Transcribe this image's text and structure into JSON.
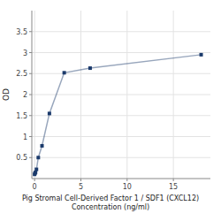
{
  "chart_data": {
    "type": "line",
    "x": [
      0,
      0.05,
      0.1,
      0.2,
      0.4,
      0.8,
      1.6,
      3.2,
      6,
      18
    ],
    "values": [
      0.1,
      0.13,
      0.15,
      0.22,
      0.5,
      0.78,
      1.55,
      2.52,
      2.63,
      2.95
    ],
    "color": "#1b3a6b",
    "marker": "square",
    "xlabel": "Pig Stromal Cell-Derived Factor 1 / SDF1 (CXCL12)\nConcentration (ng/ml)",
    "ylabel": "OD",
    "xlim": [
      -0.3,
      19
    ],
    "ylim": [
      0,
      4.0
    ],
    "xticks": [
      0,
      5,
      10,
      15
    ],
    "yticks": [
      0.5,
      1.0,
      1.5,
      2.0,
      2.5,
      3.0,
      3.5
    ],
    "grid": true
  }
}
